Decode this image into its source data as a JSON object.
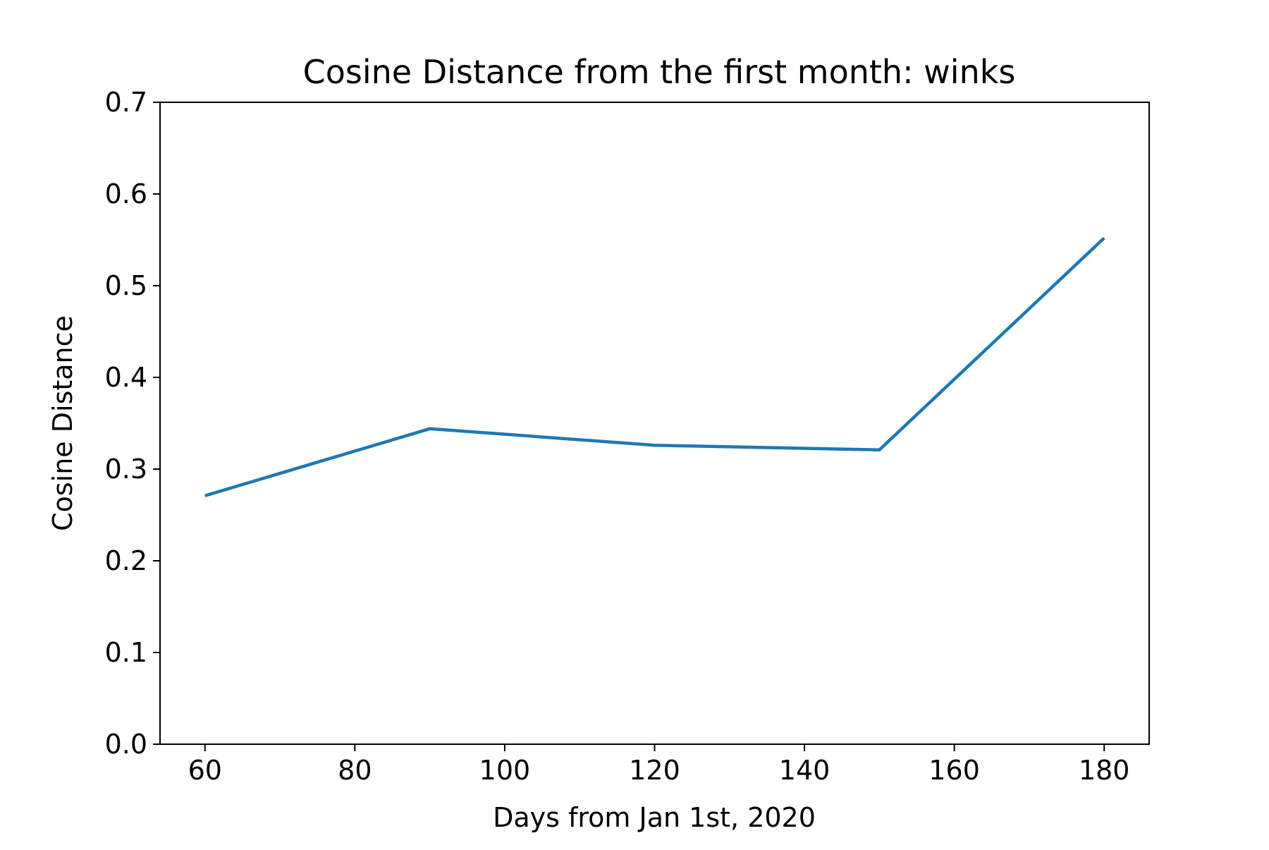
{
  "chart_data": {
    "type": "line",
    "title": "Cosine Distance from the first month: winks",
    "xlabel": "Days from Jan 1st, 2020",
    "ylabel": "Cosine Distance",
    "xlim": [
      54,
      186
    ],
    "ylim": [
      0.0,
      0.7
    ],
    "x_ticks": [
      60,
      80,
      100,
      120,
      140,
      160,
      180
    ],
    "x_tick_labels": [
      "60",
      "80",
      "100",
      "120",
      "140",
      "160",
      "180"
    ],
    "y_ticks": [
      0.0,
      0.1,
      0.2,
      0.3,
      0.4,
      0.5,
      0.6,
      0.7
    ],
    "y_tick_labels": [
      "0.0",
      "0.1",
      "0.2",
      "0.3",
      "0.4",
      "0.5",
      "0.6",
      "0.7"
    ],
    "grid": false,
    "series": [
      {
        "x": [
          60,
          90,
          120,
          150,
          180
        ],
        "values": [
          0.271,
          0.344,
          0.326,
          0.321,
          0.552
        ],
        "color": "#1f77b4"
      }
    ]
  }
}
